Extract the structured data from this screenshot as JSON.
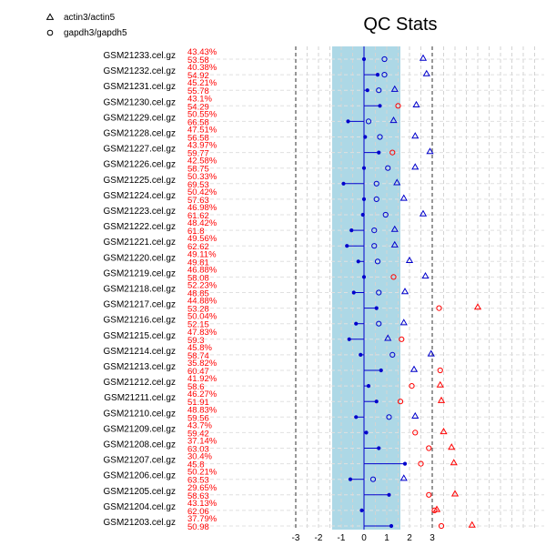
{
  "chart_data": {
    "type": "scatter",
    "title": "QC Stats",
    "xlabel": "",
    "ylabel": "",
    "xlim": [
      -3,
      8
    ],
    "x_ticks": [
      "-3",
      "-2",
      "-1",
      "0",
      "1",
      "2",
      "3"
    ],
    "x_tick_values": [
      -3,
      -2,
      -1,
      0,
      1,
      2,
      3
    ],
    "reference_lines": [
      -3,
      3
    ],
    "shaded_band": [
      -1.4,
      1.6
    ],
    "grid": true,
    "legend_position": "top-left",
    "legend": [
      {
        "symbol": "triangle",
        "label": "actin3/actin5"
      },
      {
        "symbol": "circle",
        "label": "gapdh3/gapdh5"
      }
    ],
    "colors": {
      "band": "#add8e6",
      "ok": "#0000cc",
      "fail": "#ff0000",
      "dot": "#0000cc",
      "text": "#000000"
    },
    "samples": [
      {
        "name": "GSM21233.cel.gz",
        "pct": "43.43%",
        "bg": "53.58",
        "scale": 0.0,
        "actin": 2.6,
        "gapdh": 0.9,
        "actin_flag": false,
        "gapdh_flag": false
      },
      {
        "name": "GSM21232.cel.gz",
        "pct": "40.38%",
        "bg": "54.92",
        "scale": 0.6,
        "actin": 2.75,
        "gapdh": 0.9,
        "actin_flag": false,
        "gapdh_flag": false
      },
      {
        "name": "GSM21231.cel.gz",
        "pct": "45.21%",
        "bg": "55.78",
        "scale": 0.15,
        "actin": 1.35,
        "gapdh": 0.65,
        "actin_flag": false,
        "gapdh_flag": false
      },
      {
        "name": "GSM21230.cel.gz",
        "pct": "43.1%",
        "bg": "54.29",
        "scale": 0.7,
        "actin": 2.3,
        "gapdh": 1.5,
        "actin_flag": false,
        "gapdh_flag": true
      },
      {
        "name": "GSM21229.cel.gz",
        "pct": "50.55%",
        "bg": "66.58",
        "scale": -0.7,
        "actin": 1.3,
        "gapdh": 0.2,
        "actin_flag": false,
        "gapdh_flag": false
      },
      {
        "name": "GSM21228.cel.gz",
        "pct": "47.51%",
        "bg": "56.58",
        "scale": 0.05,
        "actin": 2.25,
        "gapdh": 0.7,
        "actin_flag": false,
        "gapdh_flag": false
      },
      {
        "name": "GSM21227.cel.gz",
        "pct": "43.97%",
        "bg": "59.77",
        "scale": 0.65,
        "actin": 2.9,
        "gapdh": 1.25,
        "actin_flag": false,
        "gapdh_flag": true
      },
      {
        "name": "GSM21226.cel.gz",
        "pct": "42.58%",
        "bg": "58.75",
        "scale": 0.0,
        "actin": 2.25,
        "gapdh": 1.05,
        "actin_flag": false,
        "gapdh_flag": false
      },
      {
        "name": "GSM21225.cel.gz",
        "pct": "50.33%",
        "bg": "69.53",
        "scale": -0.9,
        "actin": 1.45,
        "gapdh": 0.55,
        "actin_flag": false,
        "gapdh_flag": false
      },
      {
        "name": "GSM21224.cel.gz",
        "pct": "50.42%",
        "bg": "57.63",
        "scale": 0.0,
        "actin": 1.75,
        "gapdh": 0.55,
        "actin_flag": false,
        "gapdh_flag": false
      },
      {
        "name": "GSM21223.cel.gz",
        "pct": "46.98%",
        "bg": "61.62",
        "scale": -0.05,
        "actin": 2.6,
        "gapdh": 0.95,
        "actin_flag": false,
        "gapdh_flag": false
      },
      {
        "name": "GSM21222.cel.gz",
        "pct": "48.42%",
        "bg": "61.8",
        "scale": -0.55,
        "actin": 1.35,
        "gapdh": 0.45,
        "actin_flag": false,
        "gapdh_flag": false
      },
      {
        "name": "GSM21221.cel.gz",
        "pct": "49.56%",
        "bg": "62.62",
        "scale": -0.75,
        "actin": 1.35,
        "gapdh": 0.45,
        "actin_flag": false,
        "gapdh_flag": false
      },
      {
        "name": "GSM21220.cel.gz",
        "pct": "49.11%",
        "bg": "49.81",
        "scale": -0.25,
        "actin": 2.0,
        "gapdh": 0.6,
        "actin_flag": false,
        "gapdh_flag": false
      },
      {
        "name": "GSM21219.cel.gz",
        "pct": "46.88%",
        "bg": "58.08",
        "scale": 0.0,
        "actin": 2.7,
        "gapdh": 1.3,
        "actin_flag": false,
        "gapdh_flag": true
      },
      {
        "name": "GSM21218.cel.gz",
        "pct": "52.23%",
        "bg": "48.85",
        "scale": -0.45,
        "actin": 1.8,
        "gapdh": 0.65,
        "actin_flag": false,
        "gapdh_flag": false
      },
      {
        "name": "GSM21217.cel.gz",
        "pct": "44.88%",
        "bg": "53.28",
        "scale": 0.55,
        "actin": 5.0,
        "gapdh": 3.3,
        "actin_flag": true,
        "gapdh_flag": true
      },
      {
        "name": "GSM21216.cel.gz",
        "pct": "50.04%",
        "bg": "52.15",
        "scale": -0.35,
        "actin": 1.75,
        "gapdh": 0.65,
        "actin_flag": false,
        "gapdh_flag": false
      },
      {
        "name": "GSM21215.cel.gz",
        "pct": "47.83%",
        "bg": "59.3",
        "scale": -0.65,
        "actin": 1.05,
        "gapdh": 1.65,
        "actin_flag": false,
        "gapdh_flag": true
      },
      {
        "name": "GSM21214.cel.gz",
        "pct": "45.8%",
        "bg": "58.74",
        "scale": -0.15,
        "actin": 2.95,
        "gapdh": 1.25,
        "actin_flag": false,
        "gapdh_flag": false
      },
      {
        "name": "GSM21213.cel.gz",
        "pct": "35.82%",
        "bg": "60.47",
        "scale": 0.75,
        "actin": 2.2,
        "gapdh": 3.35,
        "actin_flag": false,
        "gapdh_flag": true
      },
      {
        "name": "GSM21212.cel.gz",
        "pct": "41.92%",
        "bg": "58.6",
        "scale": 0.2,
        "actin": 3.35,
        "gapdh": 2.1,
        "actin_flag": true,
        "gapdh_flag": true
      },
      {
        "name": "GSM21211.cel.gz",
        "pct": "46.27%",
        "bg": "51.91",
        "scale": 0.55,
        "actin": 3.4,
        "gapdh": 1.6,
        "actin_flag": true,
        "gapdh_flag": true
      },
      {
        "name": "GSM21210.cel.gz",
        "pct": "48.83%",
        "bg": "59.56",
        "scale": -0.35,
        "actin": 2.25,
        "gapdh": 1.1,
        "actin_flag": false,
        "gapdh_flag": false
      },
      {
        "name": "GSM21209.cel.gz",
        "pct": "43.7%",
        "bg": "59.42",
        "scale": 0.1,
        "actin": 3.5,
        "gapdh": 2.25,
        "actin_flag": true,
        "gapdh_flag": true
      },
      {
        "name": "GSM21208.cel.gz",
        "pct": "37.14%",
        "bg": "63.03",
        "scale": 0.65,
        "actin": 3.85,
        "gapdh": 2.85,
        "actin_flag": true,
        "gapdh_flag": true
      },
      {
        "name": "GSM21207.cel.gz",
        "pct": "30.4%",
        "bg": "45.8",
        "scale": 1.8,
        "actin": 3.95,
        "gapdh": 2.5,
        "actin_flag": true,
        "gapdh_flag": true
      },
      {
        "name": "GSM21206.cel.gz",
        "pct": "50.21%",
        "bg": "63.53",
        "scale": -0.6,
        "actin": 1.75,
        "gapdh": 0.4,
        "actin_flag": false,
        "gapdh_flag": false
      },
      {
        "name": "GSM21205.cel.gz",
        "pct": "29.65%",
        "bg": "58.63",
        "scale": 1.1,
        "actin": 4.0,
        "gapdh": 2.85,
        "actin_flag": true,
        "gapdh_flag": true
      },
      {
        "name": "GSM21204.cel.gz",
        "pct": "43.13%",
        "bg": "62.06",
        "scale": -0.1,
        "actin": 3.2,
        "gapdh": 3.1,
        "actin_flag": true,
        "gapdh_flag": true
      },
      {
        "name": "GSM21203.cel.gz",
        "pct": "37.79%",
        "bg": "50.98",
        "scale": 1.2,
        "actin": 4.75,
        "gapdh": 3.4,
        "actin_flag": true,
        "gapdh_flag": true
      }
    ]
  }
}
